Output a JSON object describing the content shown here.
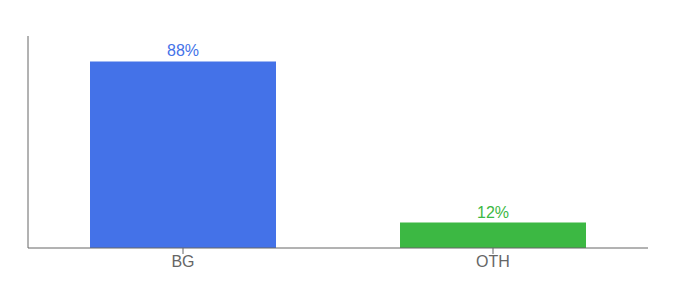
{
  "chart_data": {
    "type": "bar",
    "categories": [
      "BG",
      "OTH"
    ],
    "values": [
      88,
      12
    ],
    "colors": [
      "#4472e8",
      "#3cb843"
    ],
    "value_labels": [
      "88%",
      "12%"
    ],
    "data_labels": true,
    "ylim": [
      0,
      100
    ],
    "tick_labels": "x",
    "grid": false
  }
}
